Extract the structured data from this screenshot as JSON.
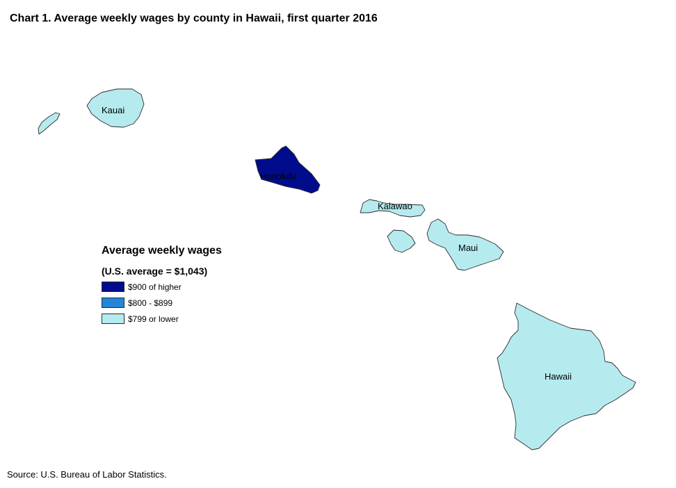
{
  "title": "Chart 1. Average weekly wages by county in Hawaii, first quarter 2016",
  "legend": {
    "title": "Average weekly wages",
    "subtitle": "(U.S. average = $1,043)",
    "items": [
      {
        "label": "$900 of higher",
        "color": "#000c8c"
      },
      {
        "label": "$800 - $899",
        "color": "#2486d9"
      },
      {
        "label": "$799 or lower",
        "color": "#b5ebee"
      }
    ]
  },
  "counties": {
    "kauai": {
      "label": "Kauai",
      "color": "#b5ebee"
    },
    "honolulu": {
      "label": "Honolulu",
      "color": "#000c8c"
    },
    "kalawao": {
      "label": "Kalawao",
      "color": "#b5ebee"
    },
    "maui": {
      "label": "Maui",
      "color": "#b5ebee"
    },
    "hawaii": {
      "label": "Hawaii",
      "color": "#b5ebee"
    }
  },
  "source": "Source: U.S. Bureau of Labor Statistics."
}
